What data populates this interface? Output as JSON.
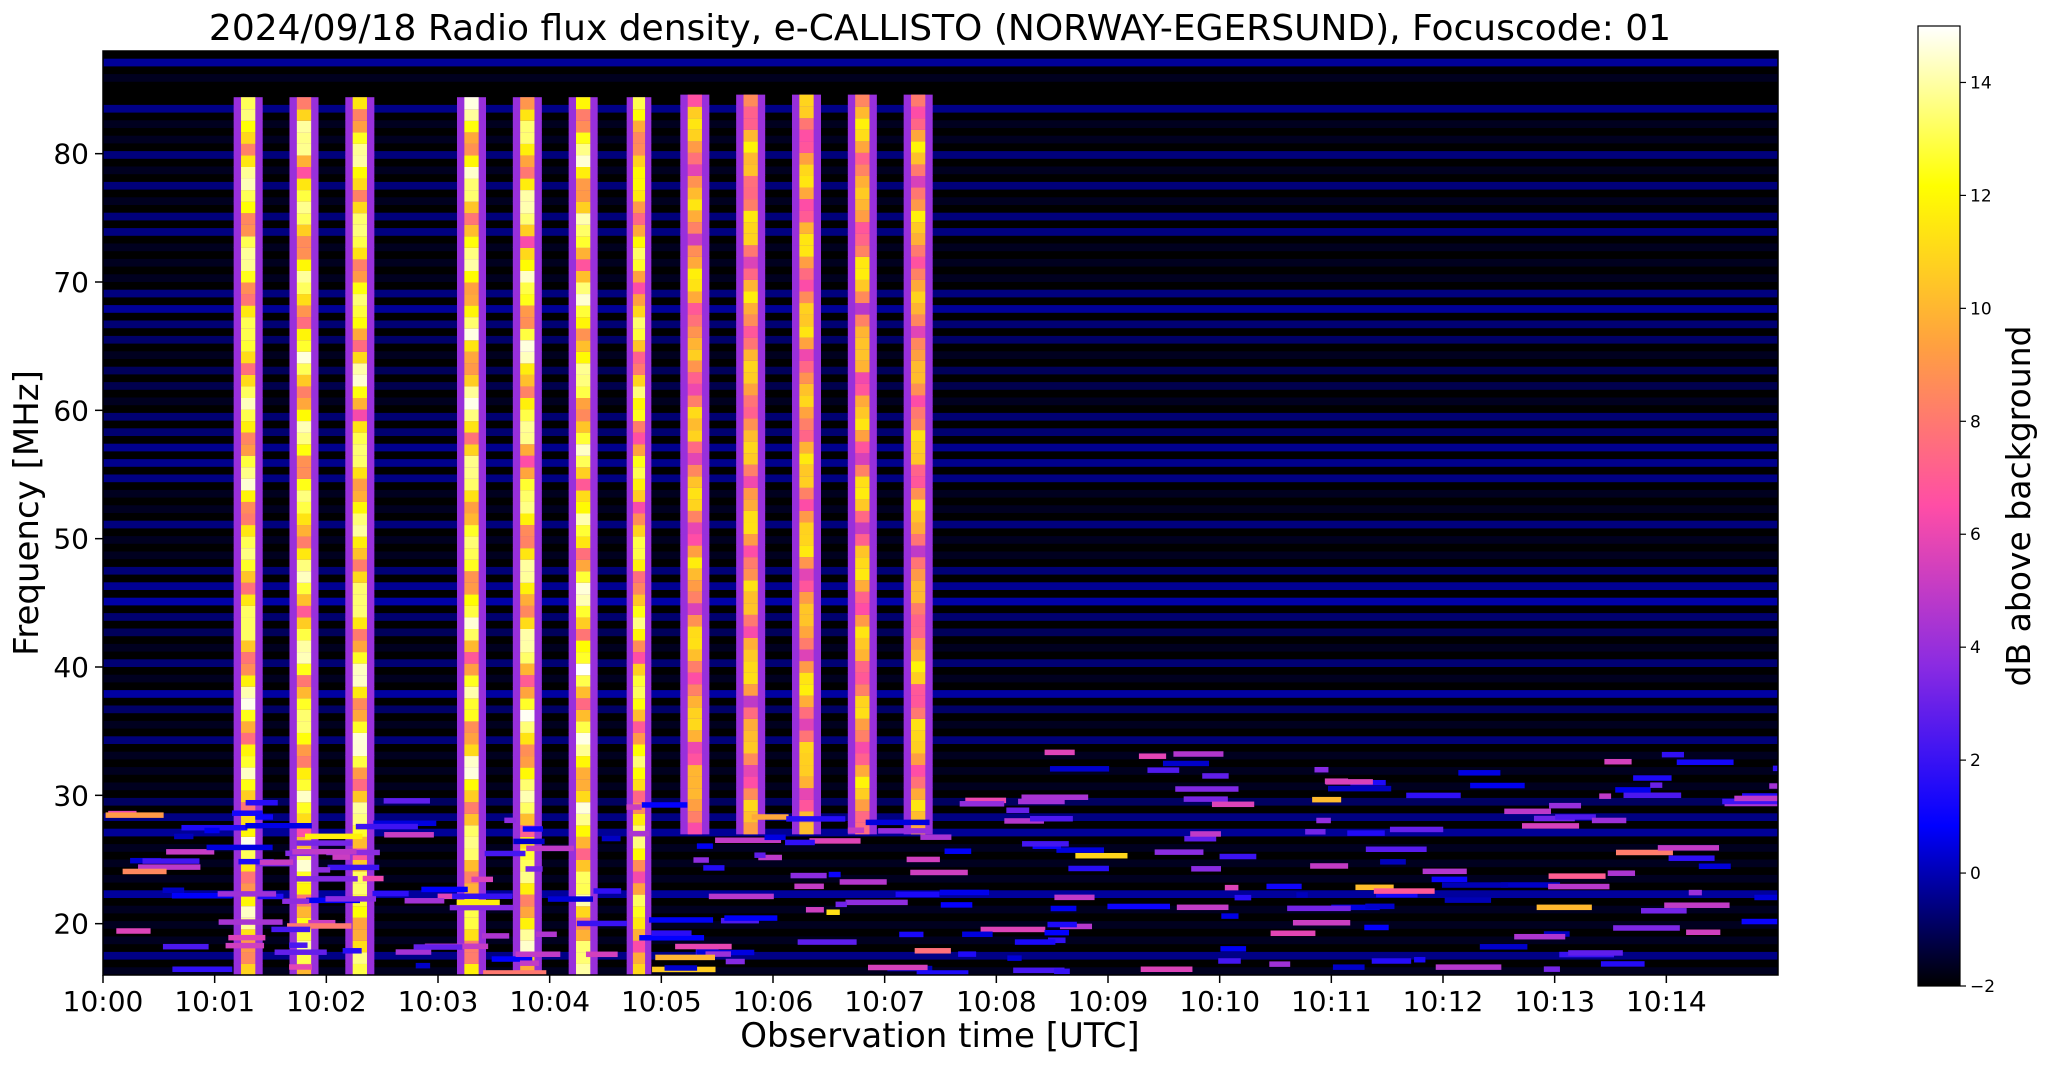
{
  "chart_data": {
    "type": "heatmap",
    "title": "2024/09/18  Radio flux density, e-CALLISTO (NORWAY-EGERSUND), Focuscode: 01",
    "xlabel": "Observation time [UTC]",
    "ylabel": "Frequency [MHz]",
    "x_unit": "minutes after 10:00 UTC",
    "xlim": [
      0,
      15
    ],
    "ylim": [
      16,
      88
    ],
    "x_ticks": [
      {
        "value": 0,
        "label": "10:00"
      },
      {
        "value": 1,
        "label": "10:01"
      },
      {
        "value": 2,
        "label": "10:02"
      },
      {
        "value": 3,
        "label": "10:03"
      },
      {
        "value": 4,
        "label": "10:04"
      },
      {
        "value": 5,
        "label": "10:05"
      },
      {
        "value": 6,
        "label": "10:06"
      },
      {
        "value": 7,
        "label": "10:07"
      },
      {
        "value": 8,
        "label": "10:08"
      },
      {
        "value": 9,
        "label": "10:09"
      },
      {
        "value": 10,
        "label": "10:10"
      },
      {
        "value": 11,
        "label": "10:11"
      },
      {
        "value": 12,
        "label": "10:12"
      },
      {
        "value": 13,
        "label": "10:13"
      },
      {
        "value": 14,
        "label": "10:14"
      }
    ],
    "y_ticks": [
      {
        "value": 20,
        "label": "20"
      },
      {
        "value": 30,
        "label": "30"
      },
      {
        "value": 40,
        "label": "40"
      },
      {
        "value": 50,
        "label": "50"
      },
      {
        "value": 60,
        "label": "60"
      },
      {
        "value": 70,
        "label": "70"
      },
      {
        "value": 80,
        "label": "80"
      }
    ],
    "colorbar": {
      "label": "dB above background",
      "range": [
        -2,
        15
      ],
      "ticks": [
        {
          "value": -2,
          "label": "−2"
        },
        {
          "value": 0,
          "label": "0"
        },
        {
          "value": 2,
          "label": "2"
        },
        {
          "value": 4,
          "label": "4"
        },
        {
          "value": 6,
          "label": "6"
        },
        {
          "value": 8,
          "label": "8"
        },
        {
          "value": 10,
          "label": "10"
        },
        {
          "value": 12,
          "label": "12"
        },
        {
          "value": 14,
          "label": "14"
        }
      ],
      "colormap": "gnuplot2",
      "stops": [
        "#000000",
        "#0000ff",
        "#8a2be2",
        "#ff4da6",
        "#ffa040",
        "#ffff00",
        "#ffffff"
      ]
    },
    "background_level_db": -1,
    "bursts": [
      {
        "center_min": 1.3,
        "width_min": 0.2,
        "fmin": 16,
        "fmax": 84,
        "peak_db": 15
      },
      {
        "center_min": 1.8,
        "width_min": 0.2,
        "fmin": 16,
        "fmax": 84,
        "peak_db": 15
      },
      {
        "center_min": 2.3,
        "width_min": 0.2,
        "fmin": 16,
        "fmax": 84,
        "peak_db": 15
      },
      {
        "center_min": 3.3,
        "width_min": 0.2,
        "fmin": 16,
        "fmax": 84,
        "peak_db": 15
      },
      {
        "center_min": 3.8,
        "width_min": 0.2,
        "fmin": 16,
        "fmax": 84,
        "peak_db": 15
      },
      {
        "center_min": 4.3,
        "width_min": 0.2,
        "fmin": 16,
        "fmax": 84,
        "peak_db": 15
      },
      {
        "center_min": 4.8,
        "width_min": 0.17,
        "fmin": 16,
        "fmax": 84,
        "peak_db": 14
      },
      {
        "center_min": 5.3,
        "width_min": 0.2,
        "fmin": 27,
        "fmax": 84,
        "peak_db": 12
      },
      {
        "center_min": 5.8,
        "width_min": 0.2,
        "fmin": 27,
        "fmax": 84,
        "peak_db": 12
      },
      {
        "center_min": 6.3,
        "width_min": 0.2,
        "fmin": 27,
        "fmax": 84,
        "peak_db": 12
      },
      {
        "center_min": 6.8,
        "width_min": 0.2,
        "fmin": 27,
        "fmax": 84,
        "peak_db": 12
      },
      {
        "center_min": 7.3,
        "width_min": 0.2,
        "fmin": 27,
        "fmax": 84,
        "peak_db": 12
      }
    ],
    "low_band_activity": {
      "fmin": 16,
      "fmax": 34,
      "typical_db": [
        0,
        6
      ]
    }
  }
}
